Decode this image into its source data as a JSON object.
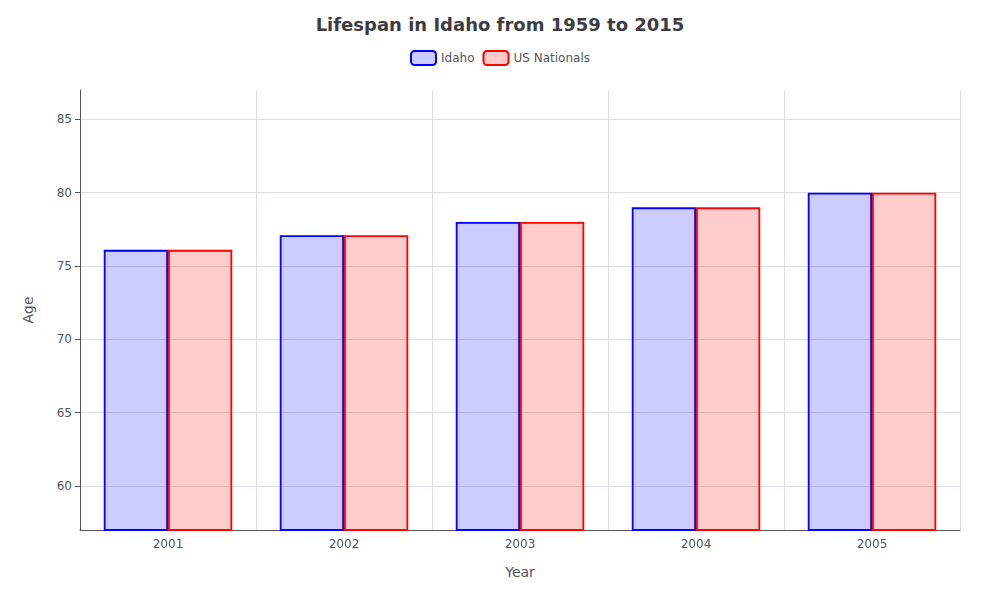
{
  "chart_data": {
    "type": "bar",
    "title": "Lifespan in Idaho from 1959 to 2015",
    "xlabel": "Year",
    "ylabel": "Age",
    "categories": [
      "2001",
      "2002",
      "2003",
      "2004",
      "2005"
    ],
    "series": [
      {
        "name": "Idaho",
        "color": "#0000ff",
        "values": [
          76.1,
          77.1,
          78.0,
          79.0,
          80.0
        ]
      },
      {
        "name": "US Nationals",
        "color": "#ff0000",
        "values": [
          76.1,
          77.1,
          78.0,
          79.0,
          80.0
        ]
      }
    ],
    "ylim": [
      57,
      87
    ],
    "yticks": [
      60,
      65,
      70,
      75,
      80,
      85
    ],
    "grid": true,
    "legend": "top"
  }
}
